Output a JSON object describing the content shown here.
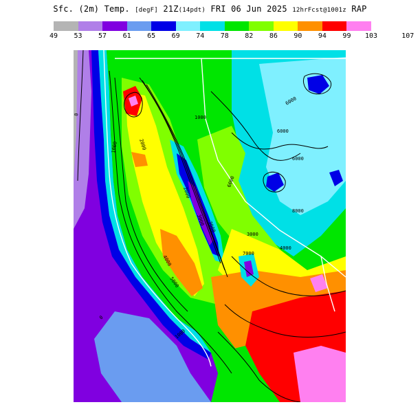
{
  "title": {
    "main": "Sfc. (2m) Temp.",
    "units": "[degF]",
    "valid": "21Z",
    "fhr": "(14pdt)",
    "date": "FRI 06 Jun 2025",
    "run": "12hrFcst@1001z",
    "model": "RAP"
  },
  "legend": {
    "colors": [
      "#b4b4b4",
      "#b07fe8",
      "#8000e0",
      "#6a9cf0",
      "#0000e6",
      "#7ff0ff",
      "#00e0e6",
      "#00e600",
      "#80ff00",
      "#ffff00",
      "#ff9000",
      "#ff0000",
      "#ff80f0"
    ],
    "ticks": [
      "49",
      "53",
      "57",
      "61",
      "65",
      "69",
      "74",
      "78",
      "82",
      "86",
      "90",
      "94",
      "99",
      "103",
      "107"
    ]
  },
  "map": {
    "contour_labels": [
      "0",
      "0",
      "1000",
      "1000",
      "1000",
      "2000",
      "2000",
      "3000",
      "3000",
      "4000",
      "4000",
      "5000",
      "6000",
      "6000",
      "6000",
      "6000",
      "7000",
      "7000",
      "8000"
    ]
  }
}
